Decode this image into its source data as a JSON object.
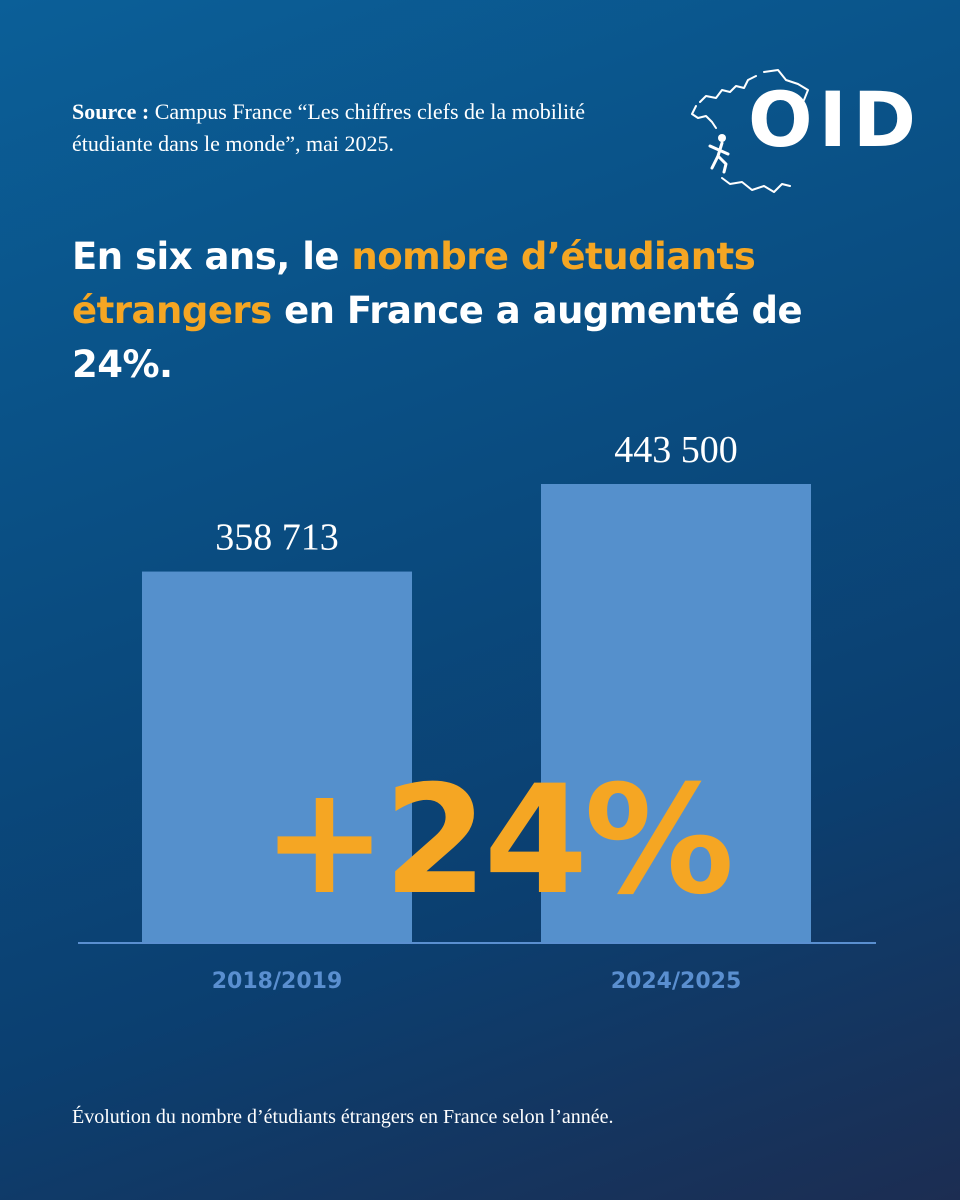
{
  "source": {
    "label": "Source :",
    "text": "Campus France “Les chiffres clefs de la mobilité étudiante dans le monde”, mai 2025."
  },
  "logo": {
    "text": "OID"
  },
  "headline": {
    "part1": "En six ans, le ",
    "highlight": "nombre d’étudiants étrangers",
    "part2": " en France a augmenté de 24%."
  },
  "colors": {
    "accent": "#f5a623",
    "bar": "#5590cc",
    "axis": "#5a8fd0",
    "tick": "#5a8fd0"
  },
  "chart_data": {
    "type": "bar",
    "categories": [
      "2018/2019",
      "2024/2025"
    ],
    "values": [
      358713,
      443500
    ],
    "value_labels": [
      "358 713",
      "443 500"
    ],
    "annotation": "+24%",
    "title": "",
    "xlabel": "",
    "ylabel": "",
    "ylim": [
      0,
      443500
    ]
  },
  "caption": "Évolution du nombre d’étudiants étrangers en France selon l’année."
}
